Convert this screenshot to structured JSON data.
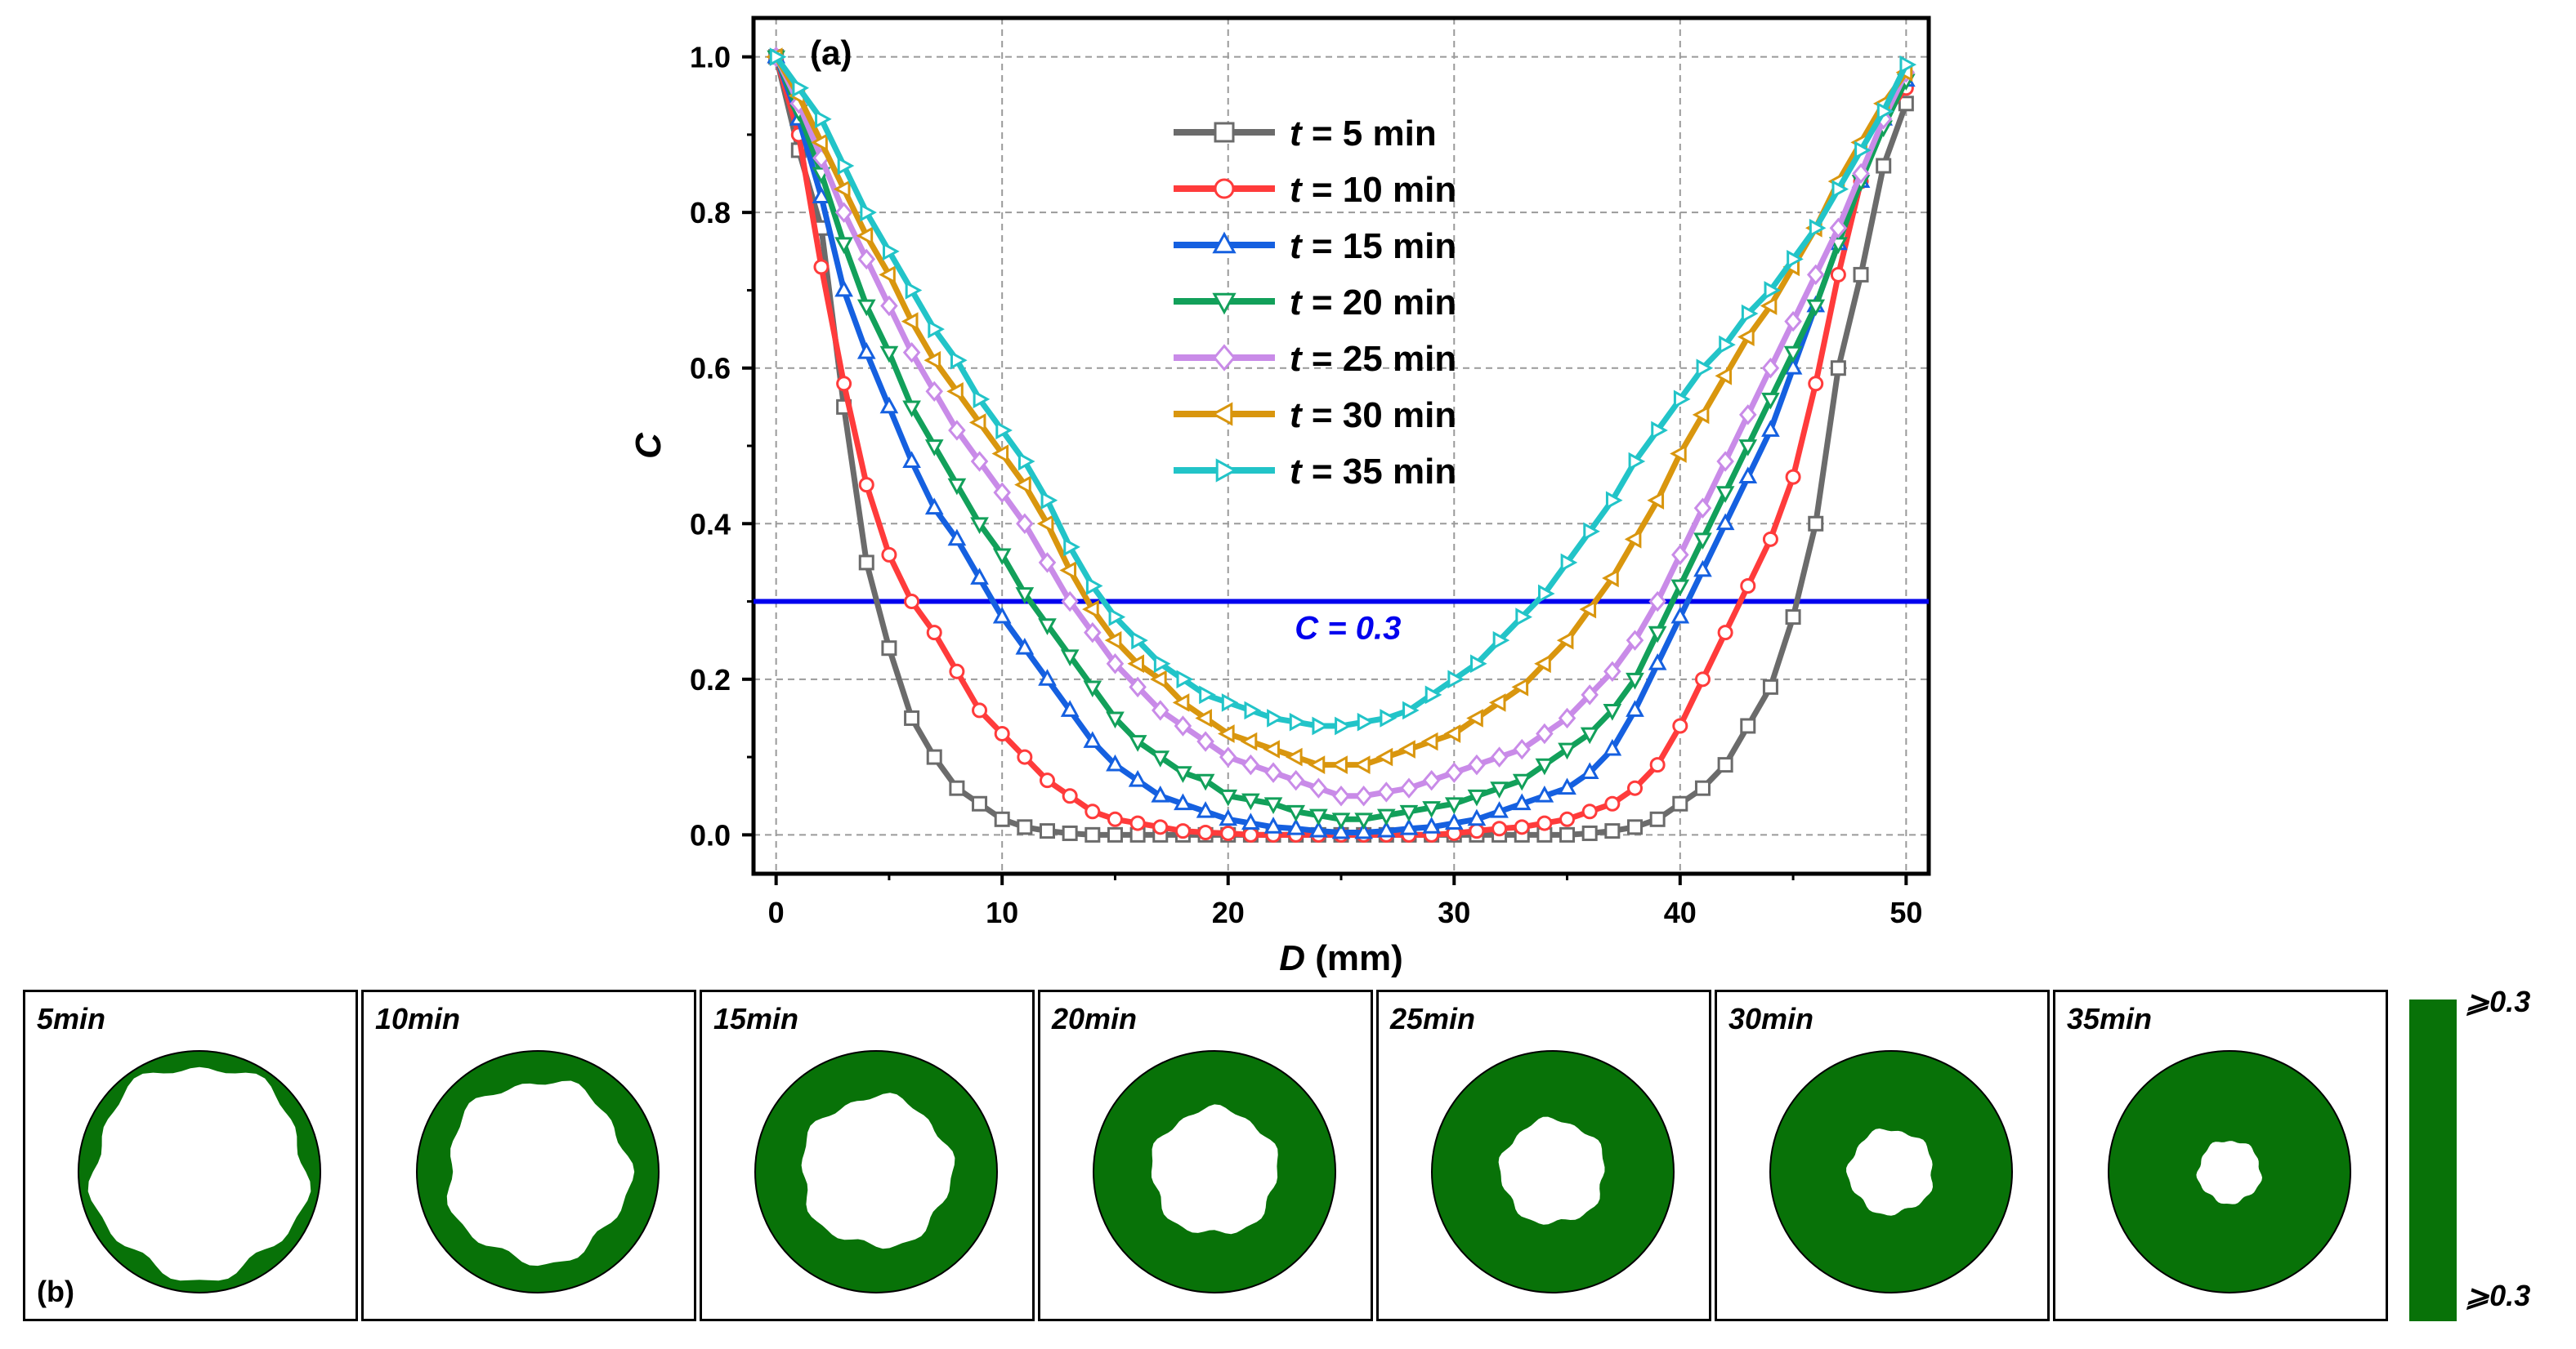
{
  "chart_data": {
    "type": "line",
    "panel_label": "(a)",
    "xlabel_var": "D",
    "xlabel_unit": " (mm)",
    "ylabel": "C",
    "xlim": [
      -1,
      51
    ],
    "ylim": [
      -0.05,
      1.05
    ],
    "xticks": [
      0,
      10,
      20,
      30,
      40,
      50
    ],
    "yticks": [
      0.0,
      0.2,
      0.4,
      0.6,
      0.8,
      1.0
    ],
    "ytick_labels": [
      "0.0",
      "0.2",
      "0.4",
      "0.6",
      "0.8",
      "1.0"
    ],
    "grid": true,
    "legend_position": "top-center",
    "threshold": {
      "value": 0.3,
      "label": "C = 0.3",
      "color": "#0000ee"
    },
    "x": [
      0,
      1,
      2,
      3,
      4,
      5,
      6,
      7,
      8,
      9,
      10,
      11,
      12,
      13,
      14,
      15,
      16,
      17,
      18,
      19,
      20,
      21,
      22,
      23,
      24,
      25,
      26,
      27,
      28,
      29,
      30,
      31,
      32,
      33,
      34,
      35,
      36,
      37,
      38,
      39,
      40,
      41,
      42,
      43,
      44,
      45,
      46,
      47,
      48,
      49,
      50
    ],
    "series": [
      {
        "name": "t = 5 min",
        "color": "#6b6b6b",
        "marker": "square",
        "values": [
          1.0,
          0.88,
          0.78,
          0.55,
          0.35,
          0.24,
          0.15,
          0.1,
          0.06,
          0.04,
          0.02,
          0.01,
          0.005,
          0.002,
          0.0,
          0.0,
          0.0,
          0.0,
          0.0,
          0.0,
          0.0,
          0.0,
          0.0,
          0.0,
          0.0,
          0.0,
          0.0,
          0.0,
          0.0,
          0.0,
          0.0,
          0.0,
          0.0,
          0.0,
          0.0,
          0.0,
          0.002,
          0.005,
          0.01,
          0.02,
          0.04,
          0.06,
          0.09,
          0.14,
          0.19,
          0.28,
          0.4,
          0.6,
          0.72,
          0.86,
          0.94
        ]
      },
      {
        "name": "t = 10 min",
        "color": "#ff3b3b",
        "marker": "circle",
        "values": [
          1.0,
          0.9,
          0.73,
          0.58,
          0.45,
          0.36,
          0.3,
          0.26,
          0.21,
          0.16,
          0.13,
          0.1,
          0.07,
          0.05,
          0.03,
          0.02,
          0.015,
          0.01,
          0.005,
          0.003,
          0.002,
          0.0,
          0.0,
          0.0,
          0.0,
          0.0,
          0.0,
          0.0,
          0.0,
          0.0,
          0.002,
          0.005,
          0.008,
          0.01,
          0.015,
          0.02,
          0.03,
          0.04,
          0.06,
          0.09,
          0.14,
          0.2,
          0.26,
          0.32,
          0.38,
          0.46,
          0.58,
          0.72,
          0.84,
          0.92,
          0.96
        ]
      },
      {
        "name": "t = 15 min",
        "color": "#1560e0",
        "marker": "triangle-up",
        "values": [
          1.0,
          0.92,
          0.82,
          0.7,
          0.62,
          0.55,
          0.48,
          0.42,
          0.38,
          0.33,
          0.28,
          0.24,
          0.2,
          0.16,
          0.12,
          0.09,
          0.07,
          0.05,
          0.04,
          0.03,
          0.02,
          0.015,
          0.01,
          0.008,
          0.005,
          0.003,
          0.003,
          0.005,
          0.008,
          0.01,
          0.015,
          0.02,
          0.03,
          0.04,
          0.05,
          0.06,
          0.08,
          0.11,
          0.16,
          0.22,
          0.28,
          0.34,
          0.4,
          0.46,
          0.52,
          0.6,
          0.68,
          0.76,
          0.84,
          0.92,
          0.97
        ]
      },
      {
        "name": "t = 20 min",
        "color": "#12a05a",
        "marker": "triangle-down",
        "values": [
          1.0,
          0.93,
          0.85,
          0.76,
          0.68,
          0.62,
          0.55,
          0.5,
          0.45,
          0.4,
          0.36,
          0.31,
          0.27,
          0.23,
          0.19,
          0.15,
          0.12,
          0.1,
          0.08,
          0.07,
          0.05,
          0.045,
          0.04,
          0.03,
          0.025,
          0.02,
          0.02,
          0.025,
          0.03,
          0.035,
          0.04,
          0.05,
          0.06,
          0.07,
          0.09,
          0.11,
          0.13,
          0.16,
          0.2,
          0.26,
          0.32,
          0.38,
          0.44,
          0.5,
          0.56,
          0.62,
          0.68,
          0.76,
          0.84,
          0.91,
          0.97
        ]
      },
      {
        "name": "t = 25 min",
        "color": "#c98be8",
        "marker": "diamond",
        "values": [
          1.0,
          0.94,
          0.87,
          0.8,
          0.74,
          0.68,
          0.62,
          0.57,
          0.52,
          0.48,
          0.44,
          0.4,
          0.35,
          0.3,
          0.26,
          0.22,
          0.19,
          0.16,
          0.14,
          0.12,
          0.1,
          0.09,
          0.08,
          0.07,
          0.06,
          0.05,
          0.05,
          0.055,
          0.06,
          0.07,
          0.08,
          0.09,
          0.1,
          0.11,
          0.13,
          0.15,
          0.18,
          0.21,
          0.25,
          0.3,
          0.36,
          0.42,
          0.48,
          0.54,
          0.6,
          0.66,
          0.72,
          0.78,
          0.85,
          0.92,
          0.98
        ]
      },
      {
        "name": "t = 30 min",
        "color": "#d9960e",
        "marker": "triangle-left",
        "values": [
          1.0,
          0.95,
          0.89,
          0.83,
          0.77,
          0.72,
          0.66,
          0.61,
          0.57,
          0.53,
          0.49,
          0.45,
          0.4,
          0.34,
          0.29,
          0.25,
          0.22,
          0.2,
          0.17,
          0.15,
          0.13,
          0.12,
          0.11,
          0.1,
          0.09,
          0.09,
          0.09,
          0.1,
          0.11,
          0.12,
          0.13,
          0.15,
          0.17,
          0.19,
          0.22,
          0.25,
          0.29,
          0.33,
          0.38,
          0.43,
          0.49,
          0.54,
          0.59,
          0.64,
          0.68,
          0.73,
          0.78,
          0.84,
          0.89,
          0.94,
          0.98
        ]
      },
      {
        "name": "t = 35 min",
        "color": "#22c4c8",
        "marker": "triangle-right",
        "values": [
          1.0,
          0.96,
          0.92,
          0.86,
          0.8,
          0.75,
          0.7,
          0.65,
          0.61,
          0.56,
          0.52,
          0.48,
          0.43,
          0.37,
          0.32,
          0.28,
          0.25,
          0.22,
          0.2,
          0.18,
          0.17,
          0.16,
          0.15,
          0.145,
          0.14,
          0.14,
          0.145,
          0.15,
          0.16,
          0.18,
          0.2,
          0.22,
          0.25,
          0.28,
          0.31,
          0.35,
          0.39,
          0.43,
          0.48,
          0.52,
          0.56,
          0.6,
          0.63,
          0.67,
          0.7,
          0.74,
          0.78,
          0.83,
          0.88,
          0.93,
          0.99
        ]
      }
    ]
  },
  "panel_b": {
    "label": "(b)",
    "panels": [
      {
        "label": "5min",
        "hole_radius": 0.88
      },
      {
        "label": "10min",
        "hole_radius": 0.75
      },
      {
        "label": "15min",
        "hole_radius": 0.62
      },
      {
        "label": "20min",
        "hole_radius": 0.52
      },
      {
        "label": "25min",
        "hole_radius": 0.43
      },
      {
        "label": "30min",
        "hole_radius": 0.35
      },
      {
        "label": "35min",
        "hole_radius": 0.26
      }
    ],
    "fill_color": "#087208",
    "colorbar_top": "⩾0.3",
    "colorbar_bottom": "⩾0.3"
  }
}
